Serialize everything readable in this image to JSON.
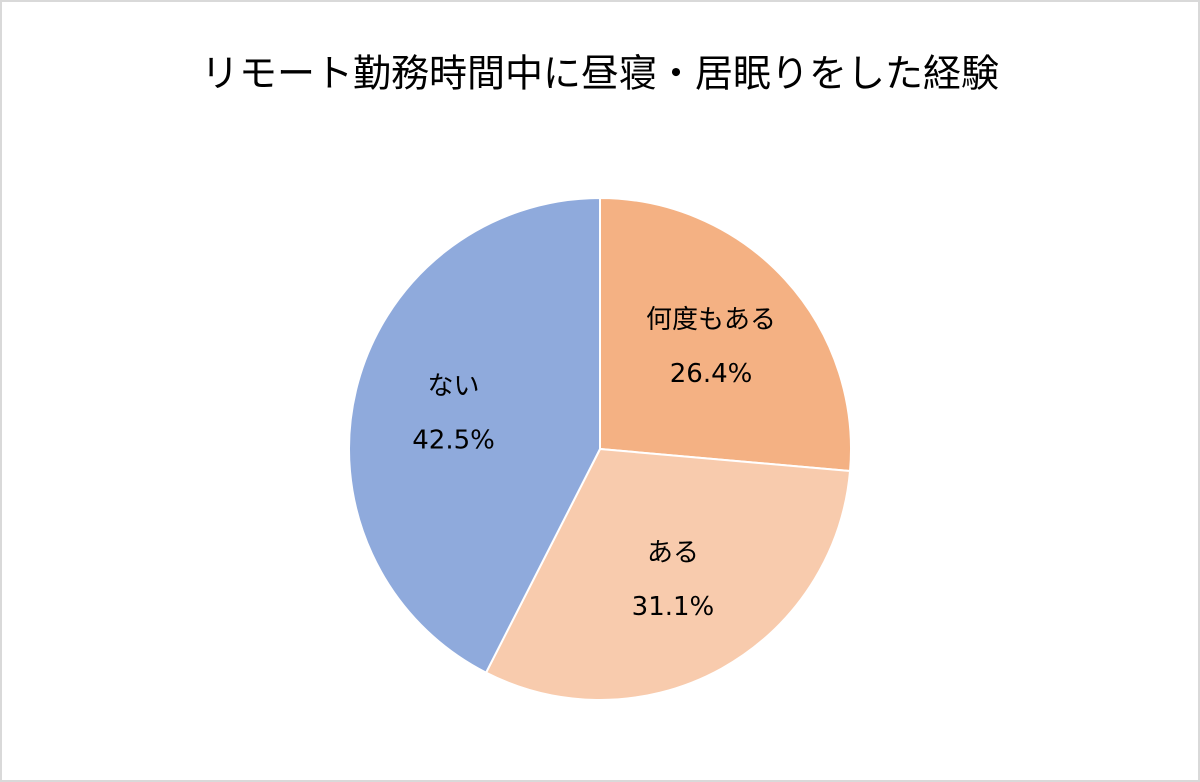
{
  "chart_data": {
    "type": "pie",
    "title": "リモート勤務時間中に昼寝・居眠りをした経験",
    "categories": [
      "何度もある",
      "ある",
      "ない"
    ],
    "values": [
      26.4,
      31.1,
      42.5
    ],
    "value_labels": [
      "26.4%",
      "31.1%",
      "42.5%"
    ],
    "colors": [
      "#f4b183",
      "#f8cbad",
      "#8faadc"
    ]
  }
}
